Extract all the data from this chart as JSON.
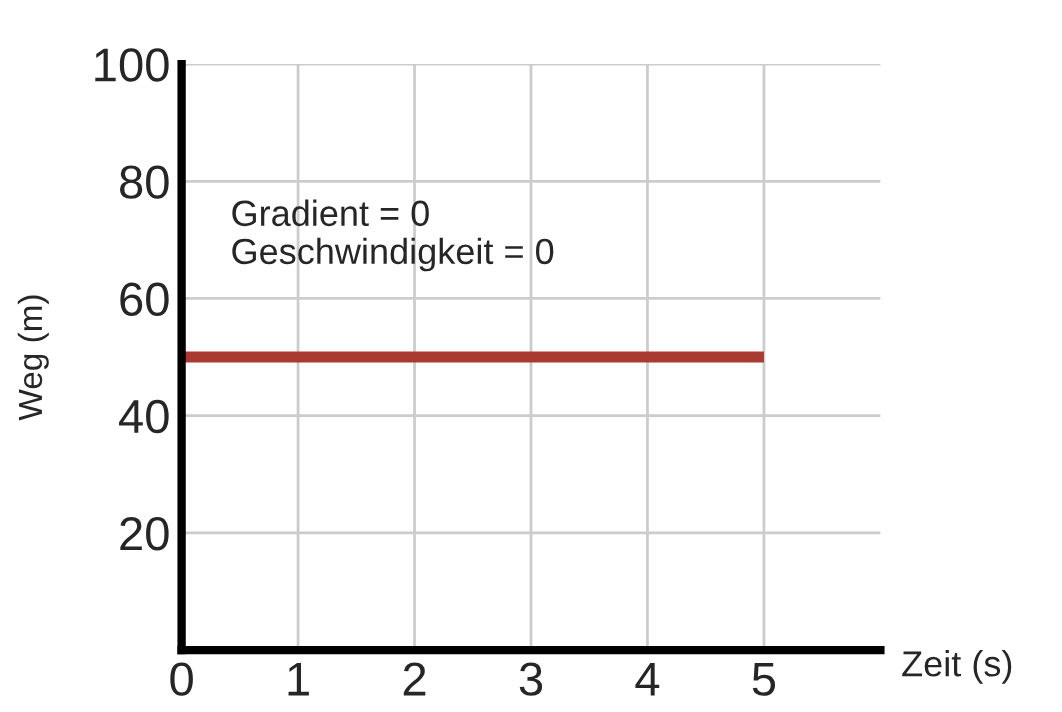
{
  "chart_data": {
    "type": "line",
    "xlabel": "Zeit (s)",
    "ylabel": "Weg (m)",
    "x": [
      0,
      5
    ],
    "series": [
      {
        "color": "#a83a32",
        "values": [
          50,
          50
        ]
      }
    ],
    "xlim": [
      0,
      6
    ],
    "xticks": [
      0,
      1,
      2,
      3,
      4,
      5
    ],
    "ylim": [
      0,
      100
    ],
    "yticks": [
      20,
      40,
      60,
      80,
      100
    ],
    "grid": true,
    "marker": "none",
    "line_style": "solid",
    "annotations": [
      "Gradient = 0",
      "Geschwindigkeit = 0"
    ]
  }
}
